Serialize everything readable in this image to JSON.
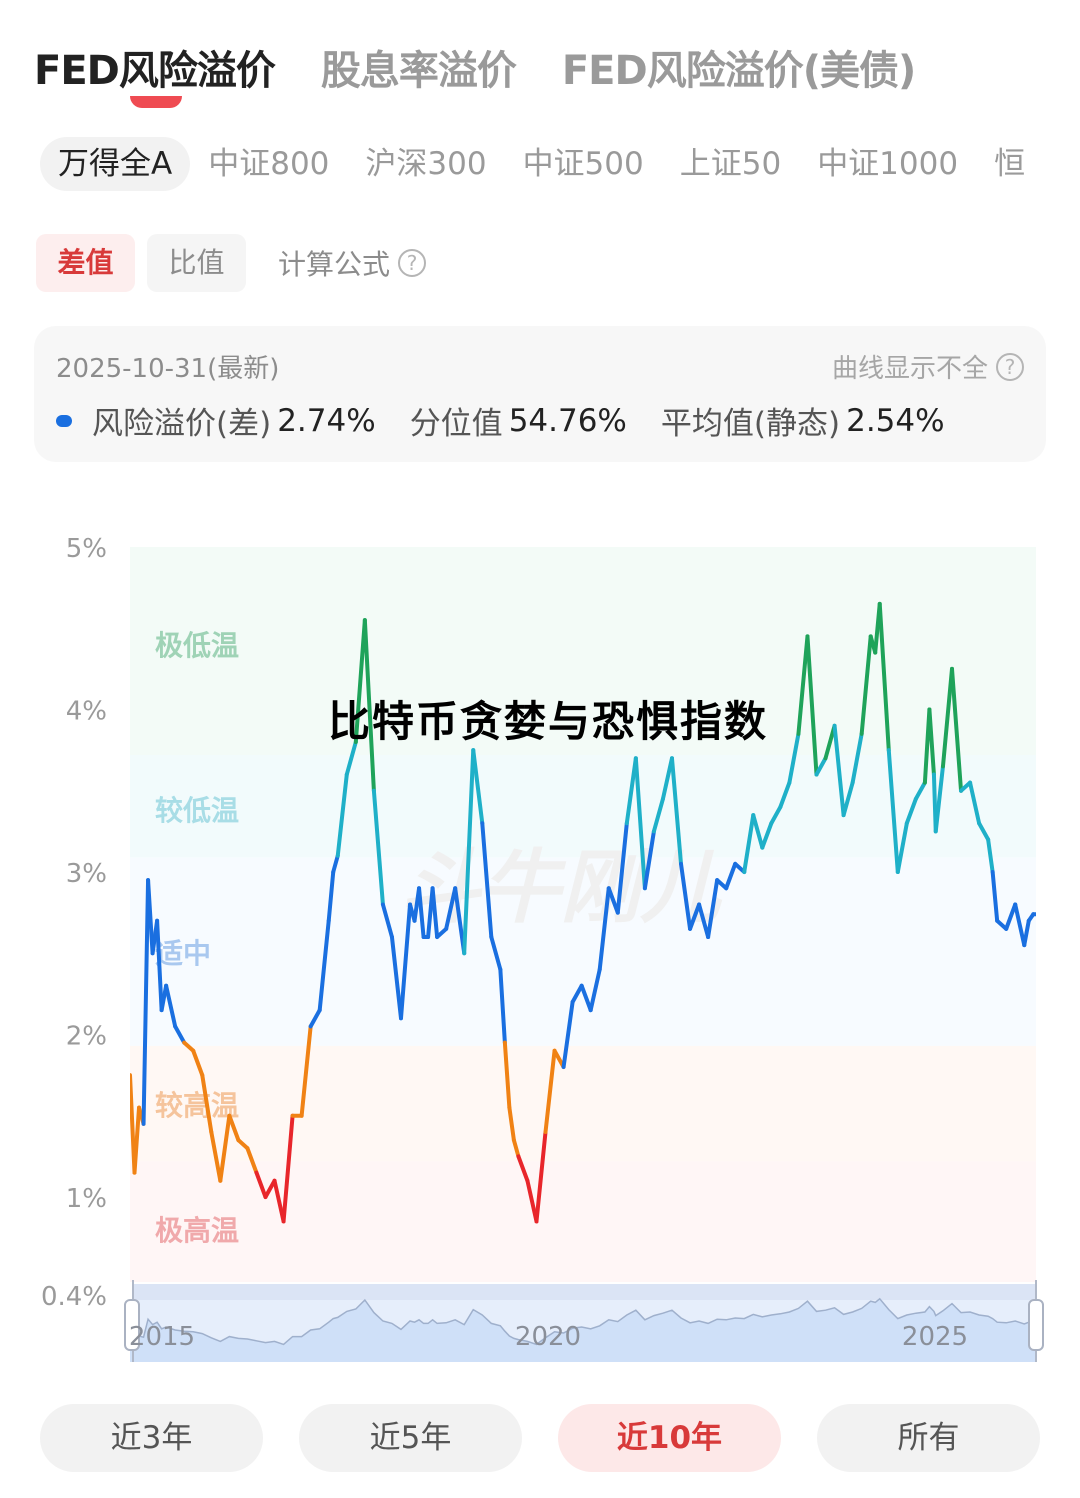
{
  "main_tabs": [
    {
      "label": "FED风险溢价",
      "active": true
    },
    {
      "label": "股息率溢价",
      "active": false
    },
    {
      "label": "FED风险溢价(美债)",
      "active": false
    }
  ],
  "index_tabs": [
    {
      "label": "万得全A",
      "active": true
    },
    {
      "label": "中证800",
      "active": false
    },
    {
      "label": "沪深300",
      "active": false
    },
    {
      "label": "中证500",
      "active": false
    },
    {
      "label": "上证50",
      "active": false
    },
    {
      "label": "中证1000",
      "active": false
    },
    {
      "label": "恒",
      "active": false
    }
  ],
  "mode": {
    "buttons": [
      {
        "label": "差值",
        "active": true
      },
      {
        "label": "比值",
        "active": false
      }
    ],
    "formula_label": "计算公式",
    "help_icon": "?"
  },
  "info_card": {
    "date": "2025-10-31(最新)",
    "hint": "曲线显示不全",
    "hint_icon": "?",
    "stats": [
      {
        "label": "风险溢价(差)",
        "value": "2.74%"
      },
      {
        "label": "分位值",
        "value": "54.76%"
      },
      {
        "label": "平均值(静态)",
        "value": "2.54%"
      }
    ]
  },
  "overlay_title": "比特币贪婪与恐惧指数",
  "range_buttons": [
    {
      "label": "近3年",
      "active": false
    },
    {
      "label": "近5年",
      "active": false
    },
    {
      "label": "近10年",
      "active": true
    },
    {
      "label": "所有",
      "active": false
    }
  ],
  "colors": {
    "accent": "#ef4b52",
    "extreme_low": "#1fa35a",
    "low": "#1fb0c8",
    "neutral": "#1a6fe0",
    "high": "#f08214",
    "extreme_high": "#e8262b"
  },
  "chart_data": {
    "type": "line",
    "title": "FED风险溢价(差) 万得全A 近10年",
    "xlabel": "",
    "ylabel": "",
    "ylim": [
      0.4,
      5
    ],
    "yticks": [
      "5%",
      "4%",
      "3%",
      "2%",
      "1%",
      "0.4%"
    ],
    "ytick_values": [
      5,
      4,
      3,
      2,
      1,
      0.4
    ],
    "xticks": [
      "2015",
      "2020",
      "2025"
    ],
    "grid": false,
    "bands": [
      {
        "label": "极低温",
        "min": 3.72,
        "max": 5.0,
        "color": "#1fa35a"
      },
      {
        "label": "较低温",
        "min": 3.09,
        "max": 3.72,
        "color": "#1fb0c8"
      },
      {
        "label": "适中",
        "min": 1.93,
        "max": 3.09,
        "color": "#1a6fe0"
      },
      {
        "label": "较高温",
        "min": 1.22,
        "max": 1.93,
        "color": "#f08214"
      },
      {
        "label": "极高温",
        "min": 0.4,
        "max": 1.22,
        "color": "#e8262b"
      }
    ],
    "series": [
      {
        "name": "风险溢价(差)",
        "x": [
          2015.8,
          2015.85,
          2015.9,
          2015.95,
          2016.0,
          2016.05,
          2016.1,
          2016.15,
          2016.2,
          2016.3,
          2016.4,
          2016.5,
          2016.6,
          2016.7,
          2016.8,
          2016.9,
          2017.0,
          2017.1,
          2017.2,
          2017.3,
          2017.4,
          2017.5,
          2017.6,
          2017.7,
          2017.8,
          2017.9,
          2018.0,
          2018.05,
          2018.1,
          2018.2,
          2018.3,
          2018.4,
          2018.5,
          2018.6,
          2018.7,
          2018.8,
          2018.9,
          2018.95,
          2019.0,
          2019.05,
          2019.1,
          2019.15,
          2019.2,
          2019.3,
          2019.4,
          2019.5,
          2019.6,
          2019.7,
          2019.8,
          2019.9,
          2019.95,
          2020.0,
          2020.05,
          2020.1,
          2020.2,
          2020.3,
          2020.4,
          2020.5,
          2020.6,
          2020.7,
          2020.8,
          2020.9,
          2021.0,
          2021.1,
          2021.2,
          2021.3,
          2021.4,
          2021.5,
          2021.6,
          2021.7,
          2021.8,
          2021.9,
          2022.0,
          2022.1,
          2022.2,
          2022.3,
          2022.4,
          2022.5,
          2022.6,
          2022.7,
          2022.8,
          2022.9,
          2023.0,
          2023.1,
          2023.2,
          2023.3,
          2023.4,
          2023.5,
          2023.6,
          2023.7,
          2023.8,
          2023.9,
          2024.0,
          2024.05,
          2024.1,
          2024.2,
          2024.3,
          2024.4,
          2024.5,
          2024.6,
          2024.65,
          2024.7,
          2024.72,
          2024.8,
          2024.9,
          2025.0,
          2025.1,
          2025.2,
          2025.3,
          2025.35,
          2025.4,
          2025.5,
          2025.6,
          2025.7,
          2025.75,
          2025.8,
          2025.83
        ],
        "values": [
          1.75,
          1.15,
          1.55,
          1.45,
          2.95,
          2.5,
          2.7,
          2.15,
          2.3,
          2.05,
          1.95,
          1.9,
          1.75,
          1.4,
          1.1,
          1.5,
          1.35,
          1.3,
          1.15,
          1.0,
          1.1,
          0.85,
          1.5,
          1.5,
          2.05,
          2.15,
          2.7,
          3.0,
          3.1,
          3.6,
          3.8,
          4.55,
          3.5,
          2.8,
          2.6,
          2.1,
          2.8,
          2.7,
          2.9,
          2.6,
          2.6,
          2.9,
          2.6,
          2.65,
          2.9,
          2.5,
          3.75,
          3.3,
          2.6,
          2.4,
          1.95,
          1.55,
          1.35,
          1.25,
          1.1,
          0.85,
          1.4,
          1.9,
          1.8,
          2.2,
          2.3,
          2.15,
          2.4,
          2.9,
          2.75,
          3.3,
          3.7,
          2.9,
          3.25,
          3.45,
          3.7,
          3.05,
          2.65,
          2.8,
          2.6,
          2.95,
          2.9,
          3.05,
          3.0,
          3.35,
          3.15,
          3.3,
          3.4,
          3.55,
          3.85,
          4.45,
          3.6,
          3.7,
          3.9,
          3.35,
          3.55,
          3.85,
          4.45,
          4.35,
          4.65,
          3.75,
          3.0,
          3.3,
          3.45,
          3.55,
          4.0,
          3.6,
          3.25,
          3.65,
          4.25,
          3.5,
          3.55,
          3.3,
          3.2,
          3.0,
          2.7,
          2.65,
          2.8,
          2.55,
          2.7,
          2.74,
          2.74
        ]
      }
    ],
    "latest": {
      "date": "2025-10-31",
      "value": 2.74,
      "percentile": 54.76,
      "mean": 2.54
    },
    "minimap_xticks": [
      "2015",
      "2020",
      "2025"
    ]
  }
}
